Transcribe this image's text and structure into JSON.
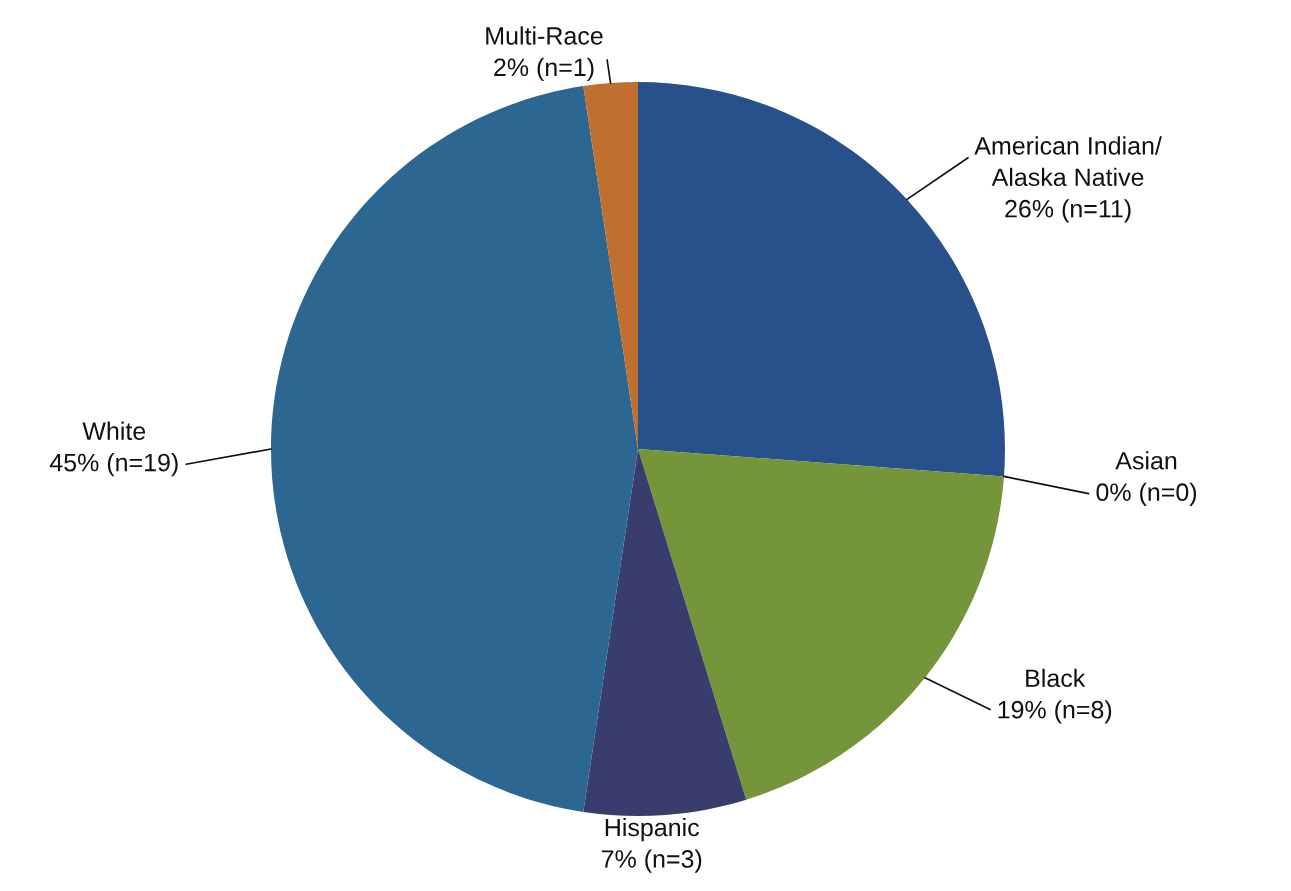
{
  "chart_data": {
    "type": "pie",
    "categories": [
      "American Indian/\nAlaska Native",
      "Asian",
      "Black",
      "Hispanic",
      "White",
      "Multi-Race"
    ],
    "values": [
      11,
      0,
      8,
      3,
      19,
      1
    ],
    "value_labels": [
      "26% (n=11)",
      "0% (n=0)",
      "19% (n=8)",
      "7% (n=3)",
      "45% (n=19)",
      "2% (n=1)"
    ],
    "colors": [
      "#28508a",
      "#4f81bd",
      "#74953a",
      "#383d6e",
      "#2c6792",
      "#c0702e"
    ]
  }
}
